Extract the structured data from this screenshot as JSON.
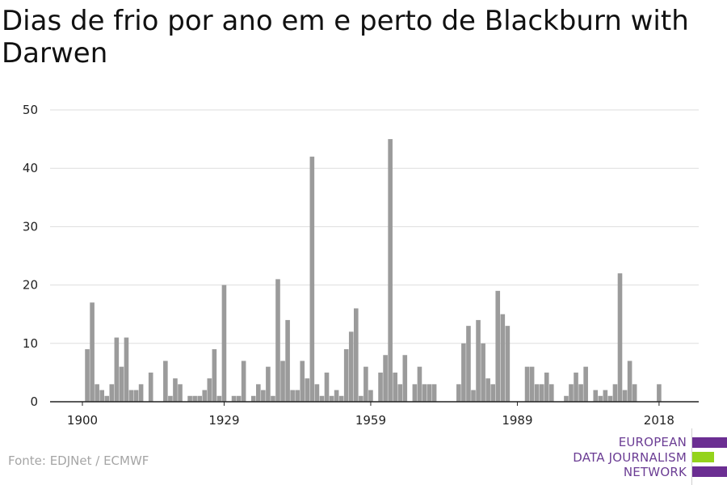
{
  "title": "Dias de frio por ano em e perto de Blackburn with Darwen",
  "source": "Fonte: EDJNet / ECMWF",
  "logo": {
    "lines": [
      "EUROPEAN",
      "DATA JOURNALISM",
      "NETWORK"
    ],
    "colors": {
      "purple": "#6b2e92",
      "green": "#94d31b"
    }
  },
  "chart_data": {
    "type": "bar",
    "title": "Dias de frio por ano em e perto de Blackburn with Darwen",
    "xlabel": "",
    "ylabel": "",
    "x": [
      1900,
      1901,
      1902,
      1903,
      1904,
      1905,
      1906,
      1907,
      1908,
      1909,
      1910,
      1911,
      1912,
      1913,
      1914,
      1915,
      1916,
      1917,
      1918,
      1919,
      1920,
      1921,
      1922,
      1923,
      1924,
      1925,
      1926,
      1927,
      1928,
      1929,
      1930,
      1931,
      1932,
      1933,
      1934,
      1935,
      1936,
      1937,
      1938,
      1939,
      1940,
      1941,
      1942,
      1943,
      1944,
      1945,
      1946,
      1947,
      1948,
      1949,
      1950,
      1951,
      1952,
      1953,
      1954,
      1955,
      1956,
      1957,
      1958,
      1959,
      1960,
      1961,
      1962,
      1963,
      1964,
      1965,
      1966,
      1967,
      1968,
      1969,
      1970,
      1971,
      1972,
      1973,
      1974,
      1975,
      1976,
      1977,
      1978,
      1979,
      1980,
      1981,
      1982,
      1983,
      1984,
      1985,
      1986,
      1987,
      1988,
      1989,
      1990,
      1991,
      1992,
      1993,
      1994,
      1995,
      1996,
      1997,
      1998,
      1999,
      2000,
      2001,
      2002,
      2003,
      2004,
      2005,
      2006,
      2007,
      2008,
      2009,
      2010,
      2011,
      2012,
      2013,
      2014,
      2015,
      2016,
      2017,
      2018,
      2019,
      2020
    ],
    "values": [
      0,
      9,
      17,
      3,
      2,
      1,
      3,
      11,
      6,
      11,
      2,
      2,
      3,
      0,
      5,
      0,
      0,
      7,
      1,
      4,
      3,
      0,
      1,
      1,
      1,
      2,
      4,
      9,
      1,
      20,
      0,
      1,
      1,
      7,
      0,
      1,
      3,
      2,
      6,
      1,
      21,
      7,
      14,
      2,
      2,
      7,
      4,
      42,
      3,
      1,
      5,
      1,
      2,
      1,
      9,
      12,
      16,
      1,
      6,
      2,
      0,
      5,
      8,
      45,
      5,
      3,
      8,
      0,
      3,
      6,
      3,
      3,
      3,
      0,
      0,
      0,
      0,
      3,
      10,
      13,
      2,
      14,
      10,
      4,
      3,
      19,
      15,
      13,
      0,
      0,
      0,
      6,
      6,
      3,
      3,
      5,
      3,
      0,
      0,
      1,
      3,
      5,
      3,
      6,
      0,
      2,
      1,
      2,
      1,
      3,
      22,
      2,
      7,
      3,
      0,
      0,
      0,
      0,
      3,
      0,
      0
    ],
    "xticks": [
      1900,
      1929,
      1959,
      1989,
      2018
    ],
    "yticks": [
      0,
      10,
      20,
      30,
      40,
      50
    ],
    "ylim": [
      0,
      50
    ],
    "xlim": [
      1900,
      2020
    ],
    "bar_color": "#9b9b9b",
    "grid": true
  }
}
